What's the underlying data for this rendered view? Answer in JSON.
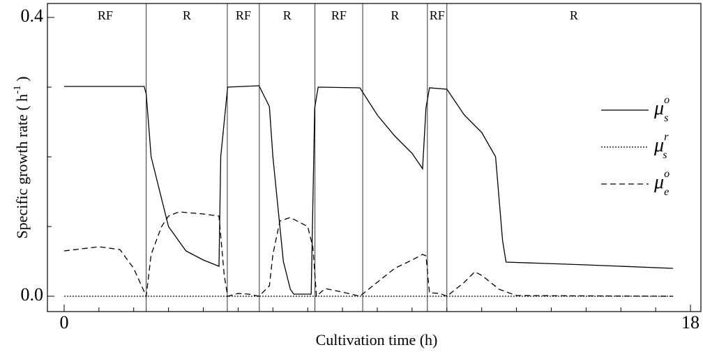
{
  "chart_data": {
    "type": "line",
    "xlabel": "Cultivation time (h)",
    "ylabel": "Specific growth rate ( h",
    "ylabel_sup": "-1",
    "ylabel_end": " )",
    "xlim": [
      -0.48,
      18.3
    ],
    "ylim": [
      -0.022,
      0.42
    ],
    "xticks": [
      0,
      18
    ],
    "xminorticks": [
      1,
      2,
      3,
      4,
      5,
      6,
      7,
      8,
      9,
      10,
      11,
      12,
      13,
      14,
      15,
      16,
      17
    ],
    "yticks": [
      {
        "value": 0,
        "label": "0.0"
      },
      {
        "value": 0.4,
        "label": "0.4"
      }
    ],
    "yminorticks": [
      0.1,
      0.2,
      0.3
    ],
    "boundaries": [
      2.36,
      4.69,
      5.61,
      7.21,
      8.58,
      10.44,
      11.0
    ],
    "phases": [
      "RF",
      "R",
      "RF",
      "R",
      "RF",
      "R",
      "RF",
      "R"
    ],
    "series": [
      {
        "name": "μ",
        "sup": "o",
        "sub": "s",
        "dash": "solid",
        "color": "#000",
        "x": [
          0,
          2.3,
          2.36,
          2.5,
          3,
          3.5,
          4,
          4.45,
          4.5,
          4.7,
          5.6,
          5.9,
          6.0,
          6.3,
          6.5,
          6.6,
          7.1,
          7.2,
          7.3,
          8.5,
          9.0,
          9.5,
          10.0,
          10.3,
          10.4,
          10.5,
          11.0,
          11.5,
          12.0,
          12.4,
          12.6,
          12.7,
          15,
          17.5
        ],
        "values": [
          0.301,
          0.301,
          0.29,
          0.2,
          0.1,
          0.065,
          0.052,
          0.043,
          0.2,
          0.3,
          0.302,
          0.272,
          0.2,
          0.05,
          0.01,
          0.003,
          0.003,
          0.27,
          0.3,
          0.299,
          0.26,
          0.23,
          0.205,
          0.183,
          0.27,
          0.299,
          0.297,
          0.26,
          0.235,
          0.2,
          0.08,
          0.049,
          0.045,
          0.04
        ]
      },
      {
        "name": "μ",
        "sup": "r",
        "sub": "s",
        "dash": "dotted",
        "color": "#000",
        "x": [
          0,
          17.5
        ],
        "values": [
          0,
          0
        ]
      },
      {
        "name": "μ",
        "sup": "o",
        "sub": "e",
        "dash": "dashed",
        "color": "#000",
        "x": [
          0,
          1,
          1.6,
          2.0,
          2.36,
          2.5,
          2.8,
          3.0,
          3.3,
          4.0,
          4.45,
          4.6,
          4.7,
          5.0,
          5.3,
          5.6,
          5.9,
          6.0,
          6.2,
          6.5,
          7.0,
          7.15,
          7.25,
          7.5,
          8.0,
          8.5,
          9.0,
          9.5,
          10.0,
          10.3,
          10.4,
          10.5,
          10.8,
          11.0,
          11.5,
          11.8,
          12.0,
          12.5,
          13.0,
          17.5
        ],
        "values": [
          0.065,
          0.071,
          0.067,
          0.04,
          0,
          0.06,
          0.1,
          0.115,
          0.121,
          0.118,
          0.115,
          0.03,
          0,
          0.004,
          0.003,
          0,
          0.015,
          0.06,
          0.108,
          0.113,
          0.1,
          0.07,
          0,
          0.011,
          0.006,
          0,
          0.02,
          0.04,
          0.052,
          0.06,
          0.058,
          0.005,
          0.004,
          0,
          0.02,
          0.035,
          0.03,
          0.01,
          0.001,
          0
        ]
      }
    ]
  }
}
